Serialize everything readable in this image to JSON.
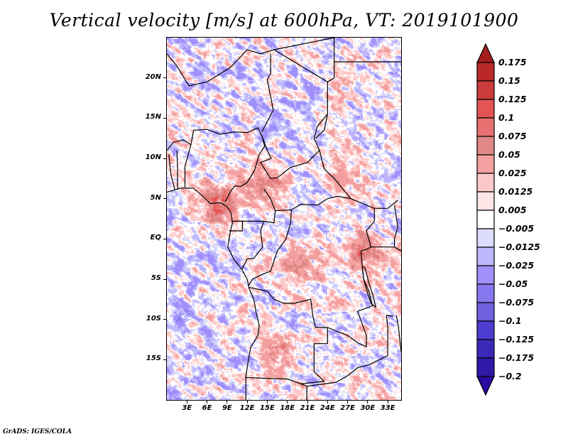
{
  "title": "Vertical velocity [m/s] at 600hPa, VT: 2019101900",
  "footer": "GrADS: IGES/COLA",
  "chart_data": {
    "type": "heatmap",
    "title": "Vertical velocity [m/s] at 600hPa, VT: 2019101900",
    "variable": "Vertical velocity",
    "units": "m/s",
    "level": "600hPa",
    "valid_time": "2019101900",
    "lon_range": [
      0,
      35
    ],
    "lat_range": [
      -20,
      25
    ],
    "x_ticks": [
      "3E",
      "6E",
      "9E",
      "12E",
      "15E",
      "18E",
      "21E",
      "24E",
      "27E",
      "30E",
      "33E"
    ],
    "x_tick_values": [
      3,
      6,
      9,
      12,
      15,
      18,
      21,
      24,
      27,
      30,
      33
    ],
    "y_ticks": [
      "20N",
      "15N",
      "10N",
      "5N",
      "EQ",
      "5S",
      "10S",
      "15S"
    ],
    "y_tick_values": [
      20,
      15,
      10,
      5,
      0,
      -5,
      -10,
      -15
    ],
    "colorbar": {
      "levels": [
        0.175,
        0.15,
        0.125,
        0.1,
        0.075,
        0.05,
        0.025,
        0.0125,
        0.005,
        -0.005,
        -0.0125,
        -0.025,
        -0.05,
        -0.075,
        -0.1,
        -0.125,
        -0.175,
        -0.2
      ],
      "labels": [
        "0.175",
        "0.15",
        "0.125",
        "0.1",
        "0.075",
        "0.05",
        "0.025",
        "0.0125",
        "0.005",
        "−0.005",
        "−0.0125",
        "−0.025",
        "−0.05",
        "−0.075",
        "−0.1",
        "−0.125",
        "−0.175",
        "−0.2"
      ],
      "colors": [
        "#a31d1d",
        "#b82828",
        "#cc3c3c",
        "#e45454",
        "#e87070",
        "#e08888",
        "#f4a0a0",
        "#fcc8c8",
        "#ffe6e6",
        "#ffffff",
        "#dcdcfc",
        "#c0b8fc",
        "#a090fc",
        "#8878f0",
        "#7060e0",
        "#4c3cd0",
        "#3c28b8",
        "#3018a8",
        "#2a0aa0"
      ],
      "extend": "both",
      "orientation": "vertical",
      "placement": "right"
    },
    "pattern_description": "Noisy mixed ascent/descent field; stronger ascent (red) near Cameroon coast/Gulf of Guinea around 3-6N 6-10E, over Great Lakes region 0-3S 28-33E, and Angola highlands 10-18S 15-18E; broad weak descent (blue) over southeastern Atlantic and central Sahara."
  }
}
